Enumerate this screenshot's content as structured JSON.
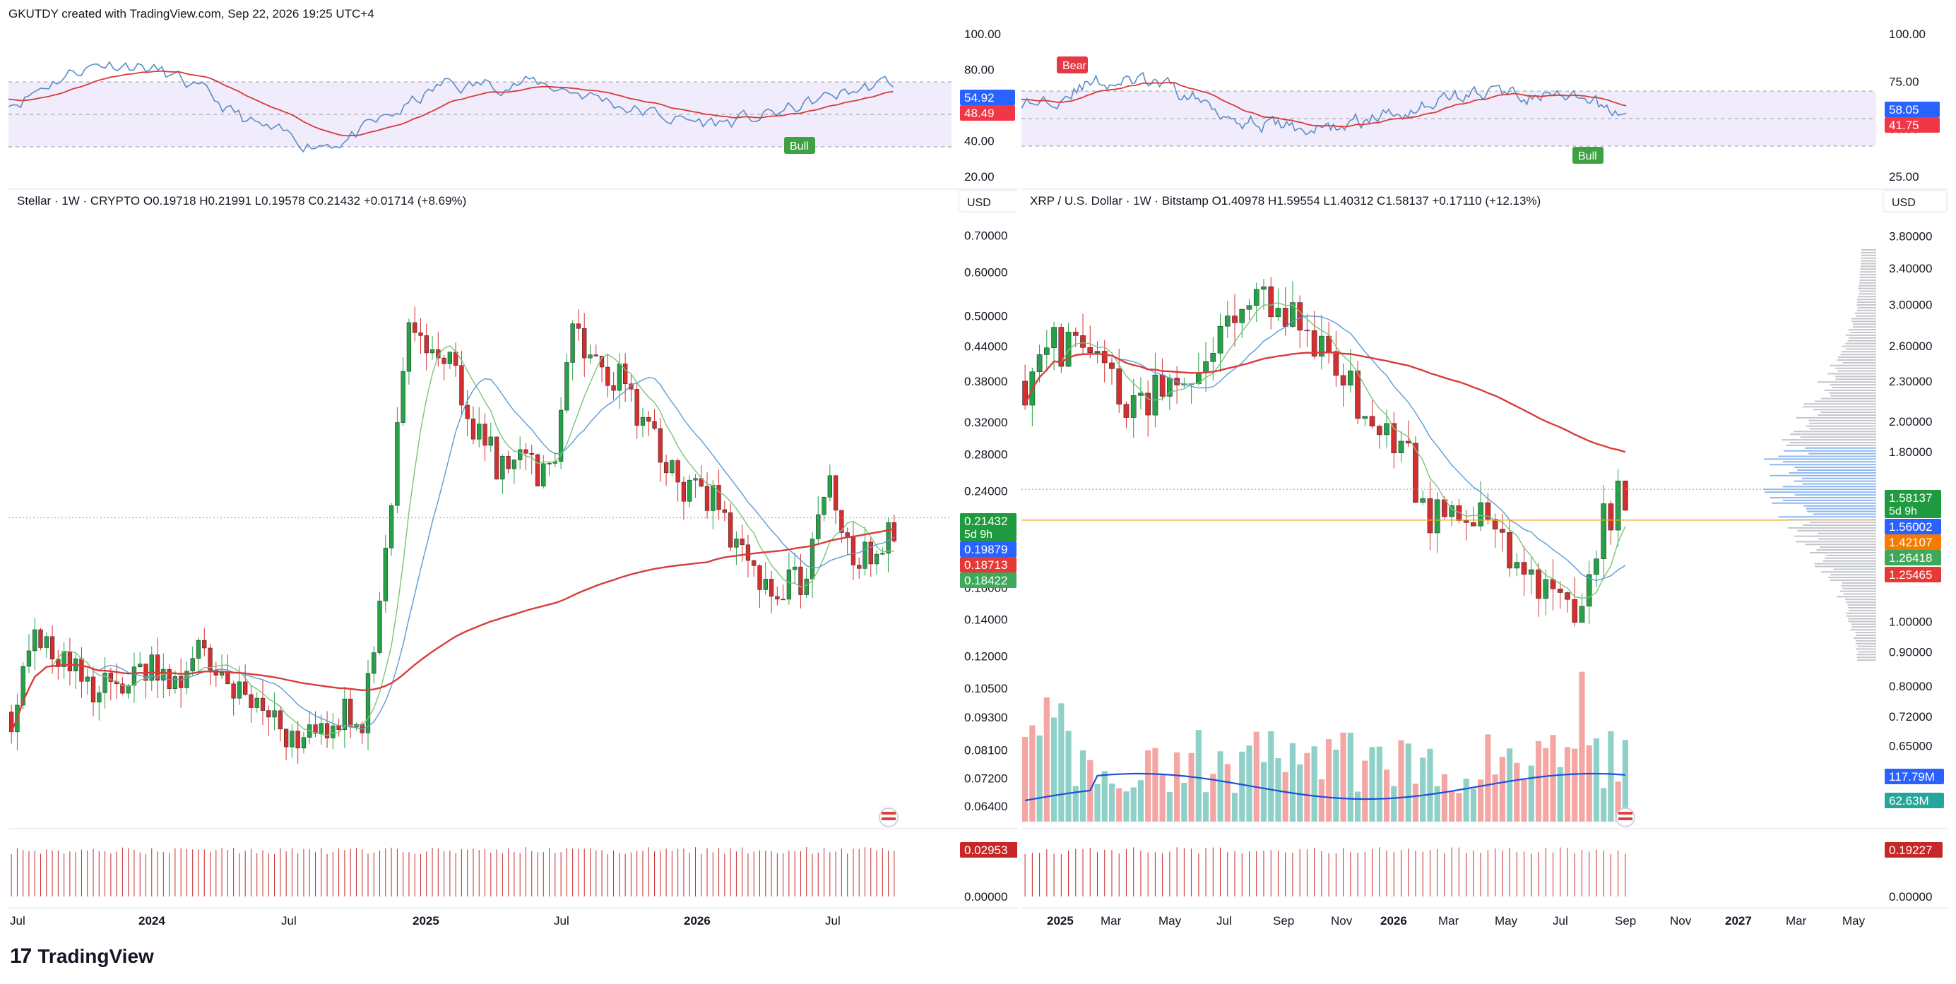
{
  "header": {
    "text": "GKUTDY created with TradingView.com, Sep 22, 2026 19:25 UTC+4"
  },
  "footer": {
    "logo_mark": "17",
    "logo_text": "TradingView"
  },
  "colors": {
    "up": "#26a69a",
    "down": "#ef5350",
    "candle_up": "#26a147",
    "candle_down": "#d32f2f",
    "rsi_line": "#5b8cc4",
    "rsi_ma": "#d83a3a",
    "ma_blue": "#5b9bd5",
    "ma_green": "#7bc47b",
    "ma_red": "#d93b3b",
    "band": "#f1ecfb",
    "accent_blue": "#2962ff"
  },
  "left": {
    "currency": "USD",
    "legend": "Stellar · 1W · CRYPTO  O0.19718  H0.21991  L0.19578  C0.21432  +0.01714 (+8.69%)",
    "rsi_axis": [
      "100.00",
      "80.00",
      "60.00",
      "40.00",
      "20.00"
    ],
    "rsi_badges": [
      {
        "text": "54.92",
        "color": "#2962ff"
      },
      {
        "text": "48.49",
        "color": "#f23645"
      }
    ],
    "rsi_signals": [
      {
        "text": "Bull",
        "color": "#3fa143"
      }
    ],
    "price_axis": [
      "0.70000",
      "0.60000",
      "0.50000",
      "0.44000",
      "0.38000",
      "0.32000",
      "0.28000",
      "0.24000",
      "0.16000",
      "0.14000",
      "0.12000",
      "0.10500",
      "0.09300",
      "0.08100",
      "0.07200",
      "0.06400"
    ],
    "price_badges": [
      {
        "text": "0.21432",
        "sub": "5d 9h",
        "color": "#1f9a3e"
      },
      {
        "text": "0.19879",
        "color": "#2962ff"
      },
      {
        "text": "0.18713",
        "color": "#e53935"
      },
      {
        "text": "0.18422",
        "color": "#3fa85a"
      }
    ],
    "time_axis": [
      "Jul",
      "2024",
      "Jul",
      "2025",
      "Jul",
      "2026",
      "Jul"
    ],
    "lower_axis": [
      "0.00000"
    ],
    "lower_badge": {
      "text": "0.02953",
      "color": "#c62828"
    }
  },
  "right": {
    "currency": "USD",
    "legend": "XRP / U.S. Dollar · 1W · Bitstamp  O1.40978  H1.59554  L1.40312  C1.58137  +0.17110 (+12.13%)",
    "rsi_axis": [
      "100.00",
      "75.00",
      "50.00",
      "25.00"
    ],
    "rsi_badges": [
      {
        "text": "58.05",
        "color": "#2962ff"
      },
      {
        "text": "41.75",
        "color": "#f23645"
      }
    ],
    "rsi_signals": [
      {
        "text": "Bear",
        "color": "#e53945"
      },
      {
        "text": "Bull",
        "color": "#3fa143"
      }
    ],
    "price_axis": [
      "3.80000",
      "3.40000",
      "3.00000",
      "2.60000",
      "2.30000",
      "2.00000",
      "1.80000",
      "1.00000",
      "0.90000",
      "0.80000",
      "0.72000",
      "0.65000",
      "0.53500"
    ],
    "price_badges": [
      {
        "text": "1.58137",
        "sub": "5d 9h",
        "color": "#1f9a3e"
      },
      {
        "text": "1.56002",
        "color": "#2962ff"
      },
      {
        "text": "1.42107",
        "color": "#f57c00"
      },
      {
        "text": "1.26418",
        "color": "#3fa85a"
      },
      {
        "text": "1.25465",
        "color": "#e53935"
      }
    ],
    "volume_badges": [
      {
        "text": "117.79M",
        "color": "#2962ff"
      },
      {
        "text": "62.63M",
        "color": "#26a69a"
      }
    ],
    "time_axis": [
      "2025",
      "Mar",
      "May",
      "Jul",
      "Sep",
      "Nov",
      "2026",
      "Mar",
      "May",
      "Jul",
      "Sep",
      "Nov",
      "2027",
      "Mar",
      "May"
    ],
    "lower_axis": [
      "0.00000"
    ],
    "lower_badge": {
      "text": "0.19227",
      "color": "#c62828"
    }
  },
  "chart_data": [
    {
      "type": "candlestick",
      "symbol": "Stellar",
      "interval": "1W",
      "last": {
        "open": 0.19718,
        "high": 0.21991,
        "low": 0.19578,
        "close": 0.21432
      },
      "x": [
        "2023-07",
        "2023-08",
        "2023-09",
        "2023-10",
        "2023-11",
        "2023-12",
        "2024-01",
        "2024-02",
        "2024-03",
        "2024-04",
        "2024-05",
        "2024-06",
        "2024-07",
        "2024-08",
        "2024-09",
        "2024-10",
        "2024-11",
        "2024-12",
        "2025-01",
        "2025-02",
        "2025-03",
        "2025-04",
        "2025-05",
        "2025-06",
        "2025-07",
        "2025-08",
        "2025-09",
        "2025-10",
        "2025-11",
        "2025-12",
        "2026-01",
        "2026-02",
        "2026-03",
        "2026-04",
        "2026-05",
        "2026-06",
        "2026-07",
        "2026-08",
        "2026-09"
      ],
      "close": [
        0.095,
        0.125,
        0.12,
        0.11,
        0.105,
        0.11,
        0.112,
        0.108,
        0.13,
        0.11,
        0.1,
        0.09,
        0.085,
        0.09,
        0.095,
        0.09,
        0.18,
        0.5,
        0.44,
        0.4,
        0.3,
        0.26,
        0.27,
        0.25,
        0.46,
        0.42,
        0.38,
        0.33,
        0.28,
        0.24,
        0.23,
        0.19,
        0.17,
        0.16,
        0.17,
        0.24,
        0.19,
        0.18,
        0.21432
      ],
      "ylim": [
        0.06,
        0.72
      ],
      "log_scale": true
    },
    {
      "type": "candlestick",
      "symbol": "XRP / U.S. Dollar",
      "interval": "1W",
      "exchange": "Bitstamp",
      "last": {
        "open": 1.40978,
        "high": 1.59554,
        "low": 1.40312,
        "close": 1.58137
      },
      "x": [
        "2024-12",
        "2025-01",
        "2025-02",
        "2025-03",
        "2025-04",
        "2025-05",
        "2025-06",
        "2025-07",
        "2025-08",
        "2025-09",
        "2025-10",
        "2025-11",
        "2025-12",
        "2026-01",
        "2026-02",
        "2026-03",
        "2026-04",
        "2026-05",
        "2026-06",
        "2026-07",
        "2026-08",
        "2026-09"
      ],
      "close": [
        2.3,
        2.6,
        2.6,
        2.3,
        2.1,
        2.3,
        2.2,
        3.0,
        3.0,
        2.9,
        2.6,
        2.3,
        2.0,
        1.85,
        1.45,
        1.4,
        1.4,
        1.2,
        1.1,
        1.05,
        1.45,
        1.58137
      ],
      "ylim": [
        0.5,
        3.9
      ],
      "log_scale": true
    }
  ]
}
